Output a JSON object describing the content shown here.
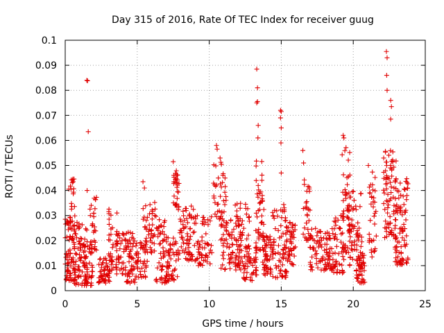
{
  "chart_data": {
    "type": "scatter",
    "title": "Day 315 of 2016, Rate Of TEC Index for receiver guug",
    "xlabel": "GPS time / hours",
    "ylabel": "ROTI / TECUs",
    "xlim": [
      0,
      25
    ],
    "ylim": [
      0,
      0.1
    ],
    "xticks": [
      0,
      5,
      10,
      15,
      20,
      25
    ],
    "xtick_labels": [
      "0",
      "5",
      "10",
      "15",
      "20",
      "25"
    ],
    "yticks": [
      0,
      0.01,
      0.02,
      0.03,
      0.04,
      0.05,
      0.06,
      0.07,
      0.08,
      0.09,
      0.1
    ],
    "ytick_labels": [
      "0",
      "0.01",
      "0.02",
      "0.03",
      "0.04",
      "0.05",
      "0.06",
      "0.07",
      "0.08",
      "0.09",
      "0.1"
    ],
    "grid": true,
    "marker": "+",
    "color": "#e00000",
    "clusters": [
      {
        "x0": 0.0,
        "x1": 0.7,
        "ymin": 0.004,
        "ymax": 0.03,
        "n": 70
      },
      {
        "x0": 0.25,
        "x1": 0.75,
        "ymin": 0.02,
        "ymax": 0.045,
        "n": 30
      },
      {
        "x0": 0.6,
        "x1": 1.5,
        "ymin": 0.002,
        "ymax": 0.028,
        "n": 80
      },
      {
        "x0": 1.3,
        "x1": 1.9,
        "ymin": 0.002,
        "ymax": 0.02,
        "n": 40
      },
      {
        "x0": 1.7,
        "x1": 2.2,
        "ymin": 0.015,
        "ymax": 0.038,
        "n": 30
      },
      {
        "x0": 2.3,
        "x1": 3.1,
        "ymin": 0.003,
        "ymax": 0.013,
        "n": 50
      },
      {
        "x0": 3.0,
        "x1": 3.6,
        "ymin": 0.008,
        "ymax": 0.034,
        "n": 40
      },
      {
        "x0": 3.5,
        "x1": 4.2,
        "ymin": 0.006,
        "ymax": 0.024,
        "n": 40
      },
      {
        "x0": 4.2,
        "x1": 4.9,
        "ymin": 0.003,
        "ymax": 0.025,
        "n": 50
      },
      {
        "x0": 4.9,
        "x1": 5.7,
        "ymin": 0.005,
        "ymax": 0.02,
        "n": 45
      },
      {
        "x0": 5.4,
        "x1": 6.3,
        "ymin": 0.015,
        "ymax": 0.036,
        "n": 45
      },
      {
        "x0": 6.3,
        "x1": 7.2,
        "ymin": 0.003,
        "ymax": 0.03,
        "n": 55
      },
      {
        "x0": 7.0,
        "x1": 7.8,
        "ymin": 0.004,
        "ymax": 0.022,
        "n": 45
      },
      {
        "x0": 7.5,
        "x1": 7.9,
        "ymin": 0.033,
        "ymax": 0.048,
        "n": 30
      },
      {
        "x0": 7.8,
        "x1": 9.0,
        "ymin": 0.012,
        "ymax": 0.034,
        "n": 70
      },
      {
        "x0": 8.9,
        "x1": 10.2,
        "ymin": 0.01,
        "ymax": 0.03,
        "n": 60
      },
      {
        "x0": 10.3,
        "x1": 11.2,
        "ymin": 0.025,
        "ymax": 0.055,
        "n": 45
      },
      {
        "x0": 10.8,
        "x1": 12.2,
        "ymin": 0.008,
        "ymax": 0.03,
        "n": 70
      },
      {
        "x0": 11.8,
        "x1": 12.8,
        "ymin": 0.01,
        "ymax": 0.035,
        "n": 50
      },
      {
        "x0": 12.4,
        "x1": 13.3,
        "ymin": 0.004,
        "ymax": 0.018,
        "n": 50
      },
      {
        "x0": 13.2,
        "x1": 13.8,
        "ymin": 0.015,
        "ymax": 0.052,
        "n": 45
      },
      {
        "x0": 13.7,
        "x1": 14.5,
        "ymin": 0.006,
        "ymax": 0.022,
        "n": 55
      },
      {
        "x0": 14.4,
        "x1": 15.4,
        "ymin": 0.005,
        "ymax": 0.035,
        "n": 70
      },
      {
        "x0": 15.3,
        "x1": 16.0,
        "ymin": 0.01,
        "ymax": 0.028,
        "n": 45
      },
      {
        "x0": 16.5,
        "x1": 17.0,
        "ymin": 0.02,
        "ymax": 0.045,
        "n": 30
      },
      {
        "x0": 17.0,
        "x1": 18.6,
        "ymin": 0.008,
        "ymax": 0.025,
        "n": 100
      },
      {
        "x0": 18.6,
        "x1": 19.4,
        "ymin": 0.007,
        "ymax": 0.03,
        "n": 50
      },
      {
        "x0": 19.2,
        "x1": 19.8,
        "ymin": 0.015,
        "ymax": 0.06,
        "n": 50
      },
      {
        "x0": 19.7,
        "x1": 20.6,
        "ymin": 0.01,
        "ymax": 0.04,
        "n": 60
      },
      {
        "x0": 20.2,
        "x1": 20.8,
        "ymin": 0.003,
        "ymax": 0.015,
        "n": 40
      },
      {
        "x0": 21.1,
        "x1": 21.6,
        "ymin": 0.013,
        "ymax": 0.048,
        "n": 35
      },
      {
        "x0": 22.1,
        "x1": 23.0,
        "ymin": 0.02,
        "ymax": 0.056,
        "n": 80
      },
      {
        "x0": 22.9,
        "x1": 23.8,
        "ymin": 0.01,
        "ymax": 0.045,
        "n": 90
      }
    ],
    "highlights": [
      [
        1.5,
        0.084
      ],
      [
        1.55,
        0.0838
      ],
      [
        1.6,
        0.0635
      ],
      [
        1.52,
        0.04
      ],
      [
        13.3,
        0.0885
      ],
      [
        13.35,
        0.081
      ],
      [
        13.3,
        0.075
      ],
      [
        13.35,
        0.0755
      ],
      [
        13.4,
        0.066
      ],
      [
        13.38,
        0.061
      ],
      [
        13.4,
        0.042
      ],
      [
        14.95,
        0.072
      ],
      [
        15.0,
        0.0715
      ],
      [
        14.95,
        0.069
      ],
      [
        15.0,
        0.065
      ],
      [
        14.98,
        0.059
      ],
      [
        15.0,
        0.047
      ],
      [
        10.5,
        0.058
      ],
      [
        10.55,
        0.0565
      ],
      [
        16.5,
        0.056
      ],
      [
        16.55,
        0.051
      ],
      [
        19.3,
        0.062
      ],
      [
        19.35,
        0.061
      ],
      [
        21.05,
        0.05
      ],
      [
        22.3,
        0.0955
      ],
      [
        22.35,
        0.093
      ],
      [
        22.32,
        0.086
      ],
      [
        22.35,
        0.08
      ],
      [
        22.6,
        0.076
      ],
      [
        22.65,
        0.0735
      ],
      [
        22.6,
        0.0685
      ],
      [
        5.4,
        0.0435
      ],
      [
        5.5,
        0.041
      ],
      [
        7.5,
        0.0515
      ]
    ]
  }
}
